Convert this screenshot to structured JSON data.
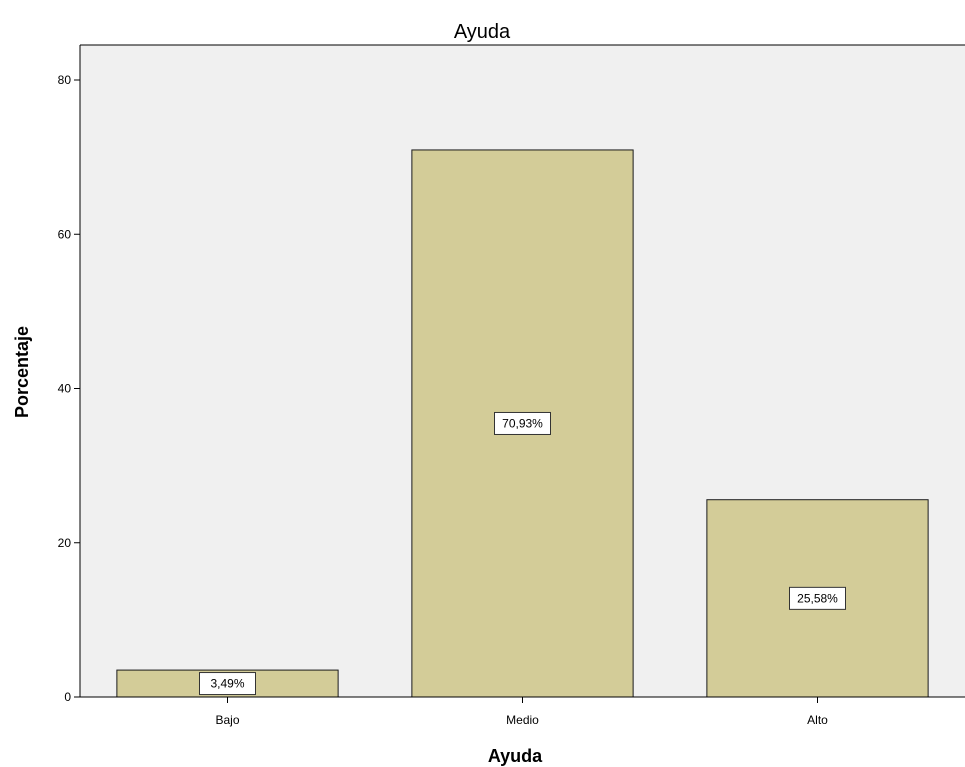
{
  "chart_data": {
    "type": "bar",
    "title": "Ayuda",
    "xlabel": "Ayuda",
    "ylabel": "Porcentaje",
    "categories": [
      "Bajo",
      "Medio",
      "Alto"
    ],
    "values": [
      3.49,
      70.93,
      25.58
    ],
    "data_labels": [
      "3,49%",
      "70,93%",
      "25,58%"
    ],
    "ylim": [
      0,
      80
    ],
    "yticks": [
      0,
      20,
      40,
      60,
      80
    ],
    "ytick_labels": [
      "0",
      "20",
      "40",
      "60",
      "80"
    ],
    "grid": false,
    "legend": "none",
    "colors": {
      "bar_fill": "#d3cc98",
      "bar_stroke": "#1a1a1a",
      "plot_background": "#f0f0f0",
      "axis": "#000000"
    }
  }
}
